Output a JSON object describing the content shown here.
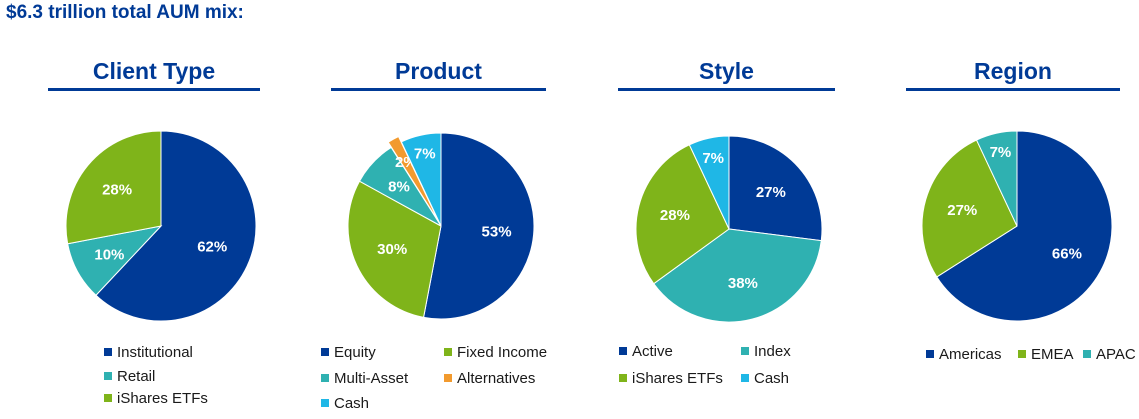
{
  "header": {
    "title": "$6.3 trillion total AUM mix:"
  },
  "colors": {
    "navy": "#003a96",
    "green": "#7fb41a",
    "teal": "#2fb1b1",
    "orange": "#f29a2e",
    "lightblue": "#1fb7e6"
  },
  "chart_data": [
    {
      "type": "pie",
      "title": "Client Type",
      "slices": [
        {
          "label": "Institutional",
          "value": 62,
          "display": "62%",
          "color": "#003a96"
        },
        {
          "label": "Retail",
          "value": 10,
          "display": "10%",
          "color": "#2fb1b1"
        },
        {
          "label": "iShares ETFs",
          "value": 28,
          "display": "28%",
          "color": "#7fb41a"
        }
      ],
      "legend": [
        "Institutional",
        "Retail",
        "iShares ETFs"
      ]
    },
    {
      "type": "pie",
      "title": "Product",
      "slices": [
        {
          "label": "Equity",
          "value": 53,
          "display": "53%",
          "color": "#003a96"
        },
        {
          "label": "Fixed Income",
          "value": 30,
          "display": "30%",
          "color": "#7fb41a"
        },
        {
          "label": "Multi-Asset",
          "value": 8,
          "display": "8%",
          "color": "#2fb1b1"
        },
        {
          "label": "Alternatives",
          "value": 2,
          "display": "2%",
          "color": "#f29a2e"
        },
        {
          "label": "Cash",
          "value": 7,
          "display": "7%",
          "color": "#1fb7e6"
        }
      ],
      "legend": [
        "Equity",
        "Fixed Income",
        "Multi-Asset",
        "Alternatives",
        "Cash"
      ]
    },
    {
      "type": "pie",
      "title": "Style",
      "slices": [
        {
          "label": "Active",
          "value": 27,
          "display": "27%",
          "color": "#003a96"
        },
        {
          "label": "Index",
          "value": 38,
          "display": "38%",
          "color": "#2fb1b1"
        },
        {
          "label": "iShares ETFs",
          "value": 28,
          "display": "28%",
          "color": "#7fb41a"
        },
        {
          "label": "Cash",
          "value": 7,
          "display": "7%",
          "color": "#1fb7e6"
        }
      ],
      "legend": [
        "Active",
        "Index",
        "iShares ETFs",
        "Cash"
      ]
    },
    {
      "type": "pie",
      "title": "Region",
      "slices": [
        {
          "label": "Americas",
          "value": 66,
          "display": "66%",
          "color": "#003a96"
        },
        {
          "label": "EMEA",
          "value": 27,
          "display": "27%",
          "color": "#7fb41a"
        },
        {
          "label": "APAC",
          "value": 7,
          "display": "7%",
          "color": "#2fb1b1"
        }
      ],
      "legend": [
        "Americas",
        "EMEA",
        "APAC"
      ]
    }
  ]
}
